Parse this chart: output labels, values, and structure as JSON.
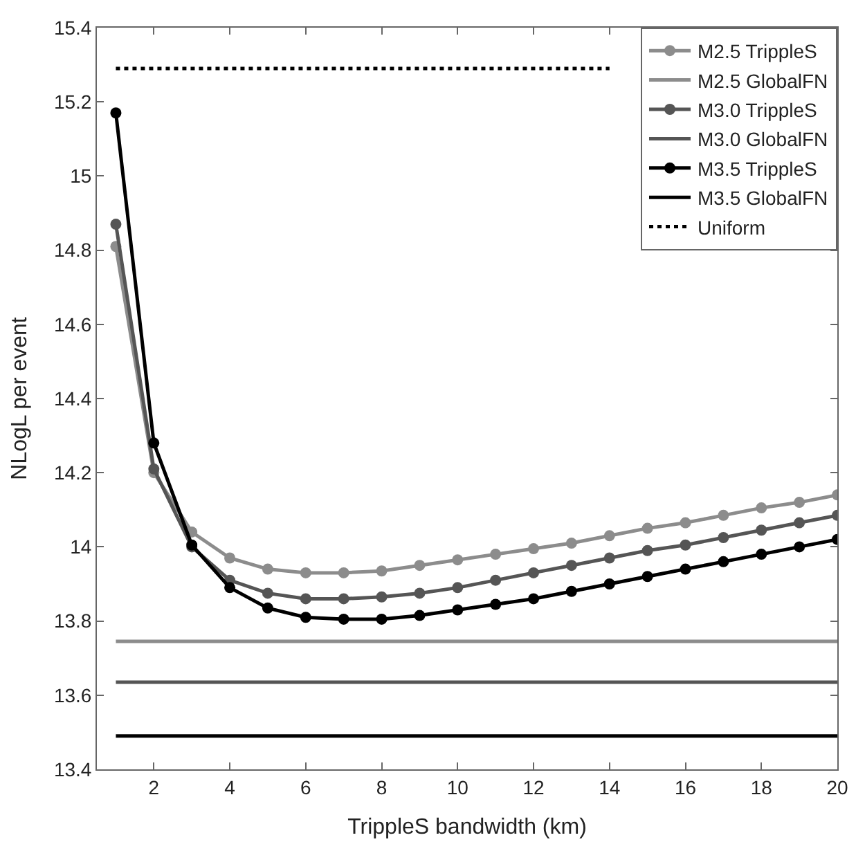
{
  "chart_data": {
    "type": "line",
    "xlabel": "TrippleS bandwidth (km)",
    "ylabel": "NLogL per event",
    "xlim": [
      0.5,
      20
    ],
    "ylim": [
      13.4,
      15.4
    ],
    "xticks": [
      2,
      4,
      6,
      8,
      10,
      12,
      14,
      16,
      18,
      20
    ],
    "yticks": [
      13.4,
      13.6,
      13.8,
      14,
      14.2,
      14.4,
      14.6,
      14.8,
      15,
      15.2,
      15.4
    ],
    "legend": "top right",
    "x": [
      1,
      2,
      3,
      4,
      5,
      6,
      7,
      8,
      9,
      10,
      11,
      12,
      13,
      14,
      15,
      16,
      17,
      18,
      19,
      20
    ],
    "series": [
      {
        "name": "M2.5 TrippleS",
        "color": "#8c8c8c",
        "marker": "circle",
        "values": [
          14.81,
          14.2,
          14.04,
          13.97,
          13.94,
          13.93,
          13.93,
          13.935,
          13.95,
          13.965,
          13.98,
          13.995,
          14.01,
          14.03,
          14.05,
          14.065,
          14.085,
          14.105,
          14.12,
          14.14
        ]
      },
      {
        "name": "M2.5 GlobalFN",
        "color": "#8c8c8c",
        "marker": "none",
        "values": [
          13.745,
          13.745,
          13.745,
          13.745,
          13.745,
          13.745,
          13.745,
          13.745,
          13.745,
          13.745,
          13.745,
          13.745,
          13.745,
          13.745,
          13.745,
          13.745,
          13.745,
          13.745,
          13.745,
          13.745
        ]
      },
      {
        "name": "M3.0 TrippleS",
        "color": "#555555",
        "marker": "circle",
        "values": [
          14.87,
          14.21,
          14.0,
          13.91,
          13.875,
          13.86,
          13.86,
          13.865,
          13.875,
          13.89,
          13.91,
          13.93,
          13.95,
          13.97,
          13.99,
          14.005,
          14.025,
          14.045,
          14.065,
          14.085
        ]
      },
      {
        "name": "M3.0 GlobalFN",
        "color": "#555555",
        "marker": "none",
        "values": [
          13.635,
          13.635,
          13.635,
          13.635,
          13.635,
          13.635,
          13.635,
          13.635,
          13.635,
          13.635,
          13.635,
          13.635,
          13.635,
          13.635,
          13.635,
          13.635,
          13.635,
          13.635,
          13.635,
          13.635
        ]
      },
      {
        "name": "M3.5 TrippleS",
        "color": "#000000",
        "marker": "circle",
        "values": [
          15.17,
          14.28,
          14.005,
          13.89,
          13.835,
          13.81,
          13.805,
          13.805,
          13.815,
          13.83,
          13.845,
          13.86,
          13.88,
          13.9,
          13.92,
          13.94,
          13.96,
          13.98,
          14.0,
          14.02
        ]
      },
      {
        "name": "M3.5 GlobalFN",
        "color": "#000000",
        "marker": "none",
        "values": [
          13.49,
          13.49,
          13.49,
          13.49,
          13.49,
          13.49,
          13.49,
          13.49,
          13.49,
          13.49,
          13.49,
          13.49,
          13.49,
          13.49,
          13.49,
          13.49,
          13.49,
          13.49,
          13.49,
          13.49
        ]
      },
      {
        "name": "Uniform",
        "color": "#000000",
        "marker": "none",
        "line_style": "dotted",
        "values": [
          15.29,
          15.29,
          15.29,
          15.29,
          15.29,
          15.29,
          15.29,
          15.29,
          15.29,
          15.29,
          15.29,
          15.29,
          15.29,
          15.29,
          null,
          null,
          null,
          null,
          null,
          null
        ]
      }
    ]
  }
}
